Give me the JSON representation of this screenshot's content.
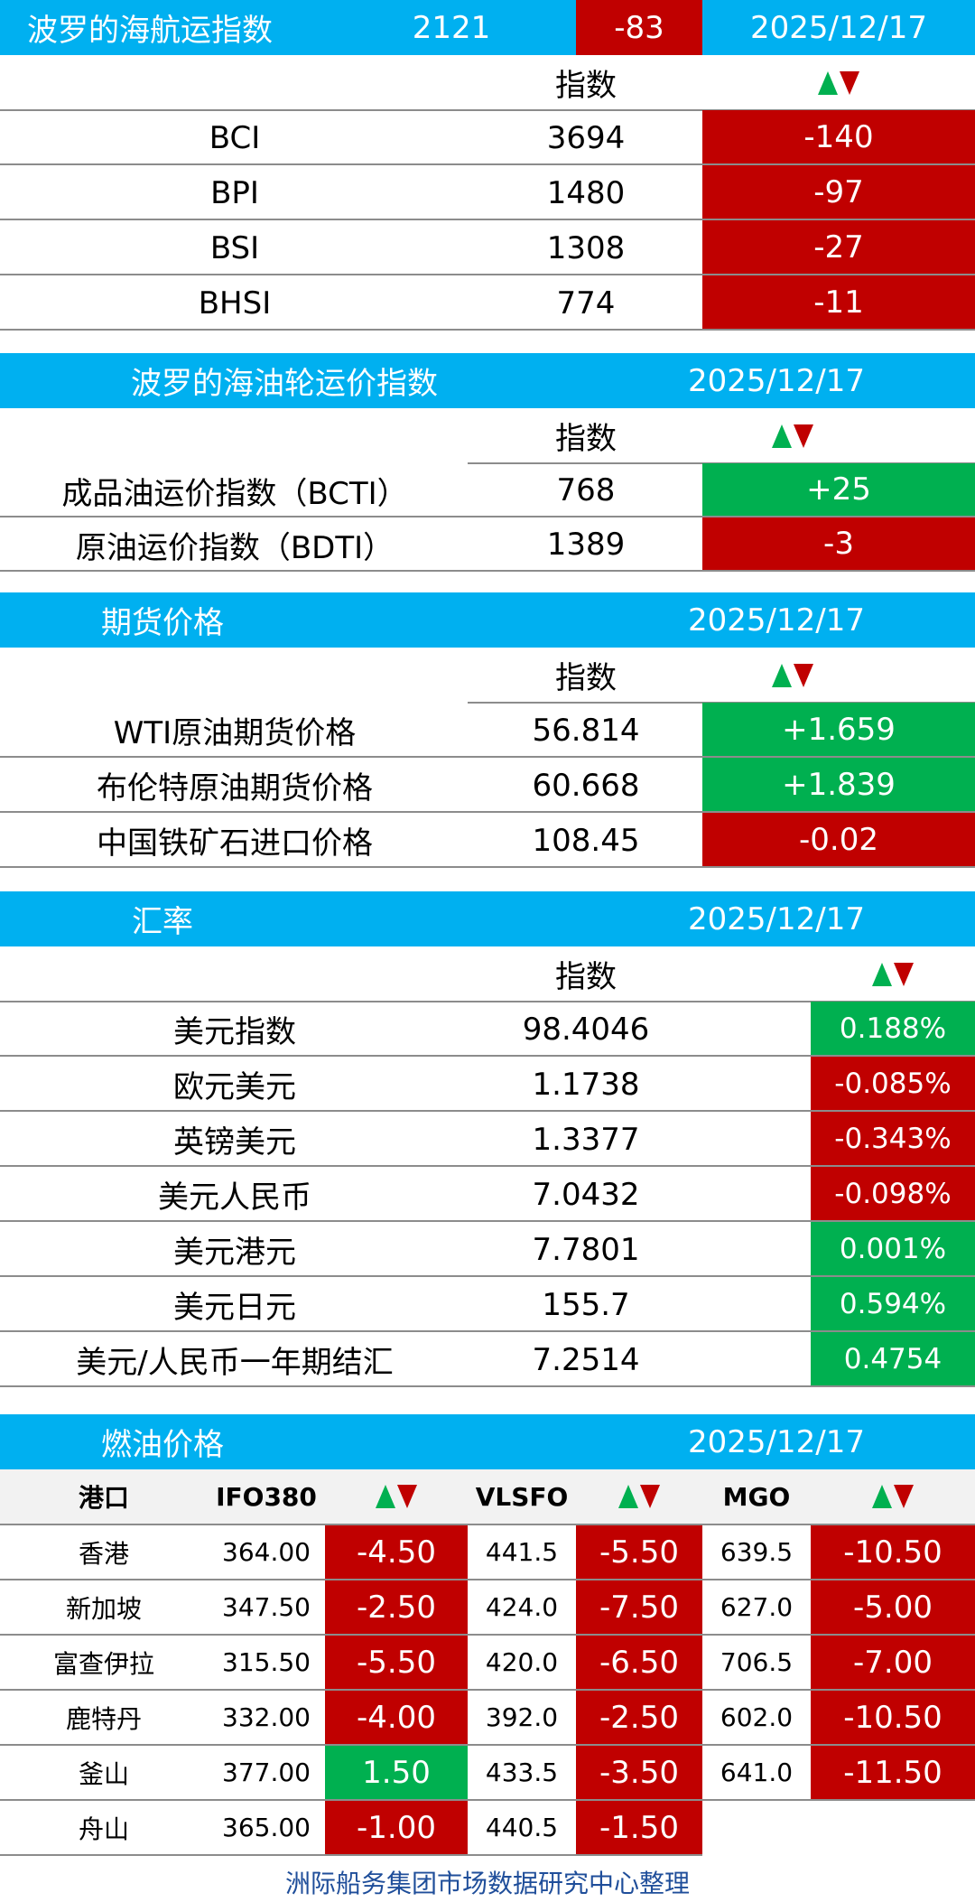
{
  "bdi": {
    "title": "波罗的海航运指数",
    "value": "2121",
    "change": "-83",
    "date": "2025/12/17",
    "col_index": "指数",
    "rows": [
      {
        "name": "BCI",
        "value": "3694",
        "change": "-140"
      },
      {
        "name": "BPI",
        "value": "1480",
        "change": "-97"
      },
      {
        "name": "BSI",
        "value": "1308",
        "change": "-27"
      },
      {
        "name": "BHSI",
        "value": "774",
        "change": "-11"
      }
    ]
  },
  "tanker": {
    "title": "波罗的海油轮运价指数",
    "date": "2025/12/17",
    "col_index": "指数",
    "rows": [
      {
        "name": "成品油运价指数（BCTI）",
        "value": "768",
        "change": "+25"
      },
      {
        "name": "原油运价指数（BDTI）",
        "value": "1389",
        "change": "-3"
      }
    ]
  },
  "futures": {
    "title": "期货价格",
    "date": "2025/12/17",
    "col_index": "指数",
    "rows": [
      {
        "name": "WTI原油期货价格",
        "value": "56.814",
        "change": "+1.659"
      },
      {
        "name": "布伦特原油期货价格",
        "value": "60.668",
        "change": "+1.839"
      },
      {
        "name": "中国铁矿石进口价格",
        "value": "108.45",
        "change": "-0.02"
      }
    ]
  },
  "fx": {
    "title": "汇率",
    "date": "2025/12/17",
    "col_index": "指数",
    "rows": [
      {
        "name": "美元指数",
        "value": "98.4046",
        "change": "0.188%"
      },
      {
        "name": "欧元美元",
        "value": "1.1738",
        "change": "-0.085%"
      },
      {
        "name": "英镑美元",
        "value": "1.3377",
        "change": "-0.343%"
      },
      {
        "name": "美元人民币",
        "value": "7.0432",
        "change": "-0.098%"
      },
      {
        "name": "美元港元",
        "value": "7.7801",
        "change": "0.001%"
      },
      {
        "name": "美元日元",
        "value": "155.7",
        "change": "0.594%"
      },
      {
        "name": "美元/人民币一年期结汇",
        "value": "7.2514",
        "change": "0.4754"
      }
    ]
  },
  "fuel": {
    "title": "燃油价格",
    "date": "2025/12/17",
    "headers": {
      "port": "港口",
      "ifo": "IFO380",
      "vlsfo": "VLSFO",
      "mgo": "MGO"
    },
    "rows": [
      {
        "port": "香港",
        "ifo": "364.00",
        "ifo_chg": "-4.50",
        "vlsfo": "441.5",
        "vlsfo_chg": "-5.50",
        "mgo": "639.5",
        "mgo_chg": "-10.50"
      },
      {
        "port": "新加坡",
        "ifo": "347.50",
        "ifo_chg": "-2.50",
        "vlsfo": "424.0",
        "vlsfo_chg": "-7.50",
        "mgo": "627.0",
        "mgo_chg": "-5.00"
      },
      {
        "port": "富查伊拉",
        "ifo": "315.50",
        "ifo_chg": "-5.50",
        "vlsfo": "420.0",
        "vlsfo_chg": "-6.50",
        "mgo": "706.5",
        "mgo_chg": "-7.00"
      },
      {
        "port": "鹿特丹",
        "ifo": "332.00",
        "ifo_chg": "-4.00",
        "vlsfo": "392.0",
        "vlsfo_chg": "-2.50",
        "mgo": "602.0",
        "mgo_chg": "-10.50"
      },
      {
        "port": "釜山",
        "ifo": "377.00",
        "ifo_chg": "1.50",
        "vlsfo": "433.5",
        "vlsfo_chg": "-3.50",
        "mgo": "641.0",
        "mgo_chg": "-11.50"
      },
      {
        "port": "舟山",
        "ifo": "365.00",
        "ifo_chg": "-1.00",
        "vlsfo": "440.5",
        "vlsfo_chg": "-1.50",
        "mgo": "",
        "mgo_chg": ""
      }
    ]
  },
  "footer": "洲际船务集团市场数据研究中心整理",
  "colors": {
    "header_bg": "#00b0f0",
    "up": "#00b050",
    "down": "#c00000",
    "footer_text": "#1f4e9a"
  }
}
